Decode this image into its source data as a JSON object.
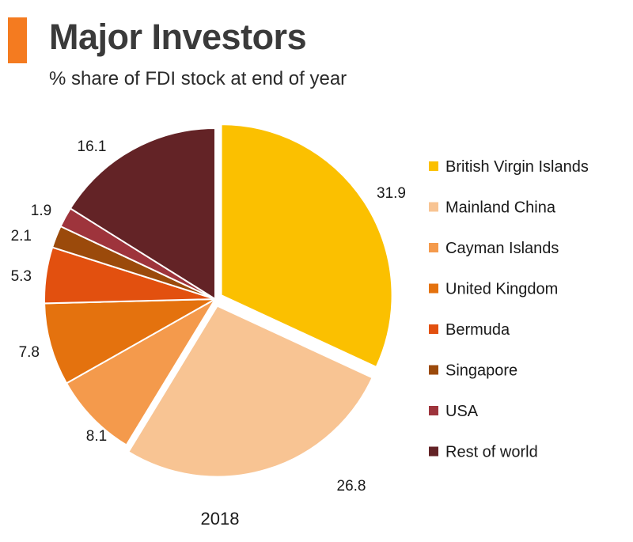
{
  "header": {
    "title": "Major Investors",
    "subtitle": "% share of FDI stock at end of year",
    "accent_color": "#F47B20"
  },
  "chart_data": {
    "type": "pie",
    "title": "Major Investors",
    "subtitle": "% share of FDI stock at end of year",
    "year_label": "2018",
    "legend_position": "right",
    "slices": [
      {
        "label": "British Virgin Islands",
        "value": 31.9,
        "display": "31.9",
        "color": "#FBC000",
        "exploded": true
      },
      {
        "label": "Mainland China",
        "value": 26.8,
        "display": "26.8",
        "color": "#F8C493",
        "exploded": true
      },
      {
        "label": "Cayman Islands",
        "value": 8.1,
        "display": "8.1",
        "color": "#F49A4C",
        "exploded": false
      },
      {
        "label": "United Kingdom",
        "value": 7.8,
        "display": "7.8",
        "color": "#E4720E",
        "exploded": false
      },
      {
        "label": "Bermuda",
        "value": 5.3,
        "display": "5.3",
        "color": "#E2500F",
        "exploded": false
      },
      {
        "label": "Singapore",
        "value": 2.1,
        "display": "2.1",
        "color": "#9B4A0B",
        "exploded": false
      },
      {
        "label": "USA",
        "value": 1.9,
        "display": "1.9",
        "color": "#9E343C",
        "exploded": false
      },
      {
        "label": "Rest of world",
        "value": 16.1,
        "display": "16.1",
        "color": "#632326",
        "exploded": false
      }
    ]
  }
}
